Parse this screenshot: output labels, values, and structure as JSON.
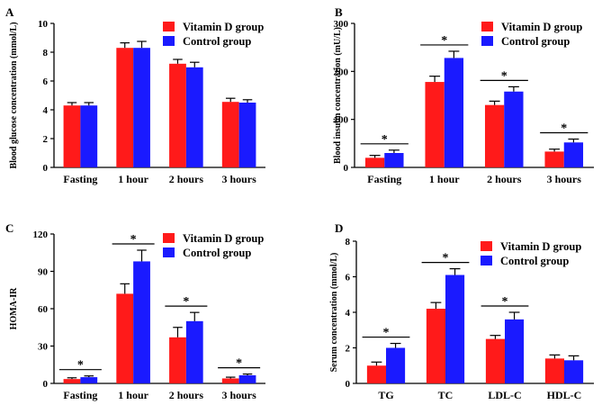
{
  "colors": {
    "vitamin_d": "#ff1a1a",
    "control": "#1a1aff"
  },
  "chart_data": [
    {
      "panel": "A",
      "type": "bar",
      "ylabel": "Blood glucose concentration (mmol/L)",
      "ylim": [
        0,
        10
      ],
      "yticks": [
        "0",
        "2",
        "4",
        "6",
        "8",
        "10"
      ],
      "categories": [
        "Fasting",
        "1 hour",
        "2 hours",
        "3 hours"
      ],
      "legend": [
        "Vitamin D group",
        "Control group"
      ],
      "series": [
        {
          "name": "Vitamin D group",
          "values": [
            4.3,
            8.3,
            7.2,
            4.55
          ],
          "errors": [
            0.2,
            0.35,
            0.3,
            0.25
          ]
        },
        {
          "name": "Control group",
          "values": [
            4.3,
            8.3,
            6.95,
            4.5
          ],
          "errors": [
            0.2,
            0.45,
            0.35,
            0.2
          ]
        }
      ],
      "significance": [
        false,
        false,
        false,
        false
      ]
    },
    {
      "panel": "B",
      "type": "bar",
      "ylabel": "Blood insulin concentration (mU/L)",
      "ylim": [
        0,
        300
      ],
      "yticks": [
        "0",
        "100",
        "200",
        "300"
      ],
      "categories": [
        "Fasting",
        "1 hour",
        "2 hours",
        "3 hours"
      ],
      "legend": [
        "Vitamin D group",
        "Control group"
      ],
      "series": [
        {
          "name": "Vitamin D group",
          "values": [
            20,
            178,
            130,
            33
          ],
          "errors": [
            5,
            12,
            8,
            5
          ]
        },
        {
          "name": "Control group",
          "values": [
            30,
            228,
            158,
            52
          ],
          "errors": [
            6,
            14,
            10,
            7
          ]
        }
      ],
      "significance": [
        true,
        true,
        true,
        true
      ],
      "sig_symbol": "*"
    },
    {
      "panel": "C",
      "type": "bar",
      "ylabel": "HOMA-IR",
      "ylim": [
        0,
        120
      ],
      "yticks": [
        "0",
        "30",
        "60",
        "90",
        "120"
      ],
      "categories": [
        "Fasting",
        "1 hour",
        "2 hours",
        "3 hours"
      ],
      "legend": [
        "Vitamin D group",
        "Control group"
      ],
      "series": [
        {
          "name": "Vitamin D group",
          "values": [
            3.5,
            72,
            37,
            4
          ],
          "errors": [
            1,
            8,
            8,
            1
          ]
        },
        {
          "name": "Control group",
          "values": [
            5,
            98,
            50,
            6.5
          ],
          "errors": [
            1,
            9,
            7,
            1
          ]
        }
      ],
      "significance": [
        true,
        true,
        true,
        true
      ],
      "sig_symbol": "*"
    },
    {
      "panel": "D",
      "type": "bar",
      "ylabel": "Serum concentration (mmol/L)",
      "ylim": [
        0,
        8
      ],
      "yticks": [
        "0",
        "2",
        "4",
        "6",
        "8"
      ],
      "categories": [
        "TG",
        "TC",
        "LDL-C",
        "HDL-C"
      ],
      "legend": [
        "Vitamin D group",
        "Control group"
      ],
      "series": [
        {
          "name": "Vitamin D group",
          "values": [
            1.0,
            4.2,
            2.5,
            1.4
          ],
          "errors": [
            0.2,
            0.35,
            0.2,
            0.2
          ]
        },
        {
          "name": "Control group",
          "values": [
            2.0,
            6.1,
            3.6,
            1.3
          ],
          "errors": [
            0.25,
            0.35,
            0.4,
            0.25
          ]
        }
      ],
      "significance": [
        true,
        true,
        true,
        false
      ],
      "sig_symbol": "*"
    }
  ]
}
